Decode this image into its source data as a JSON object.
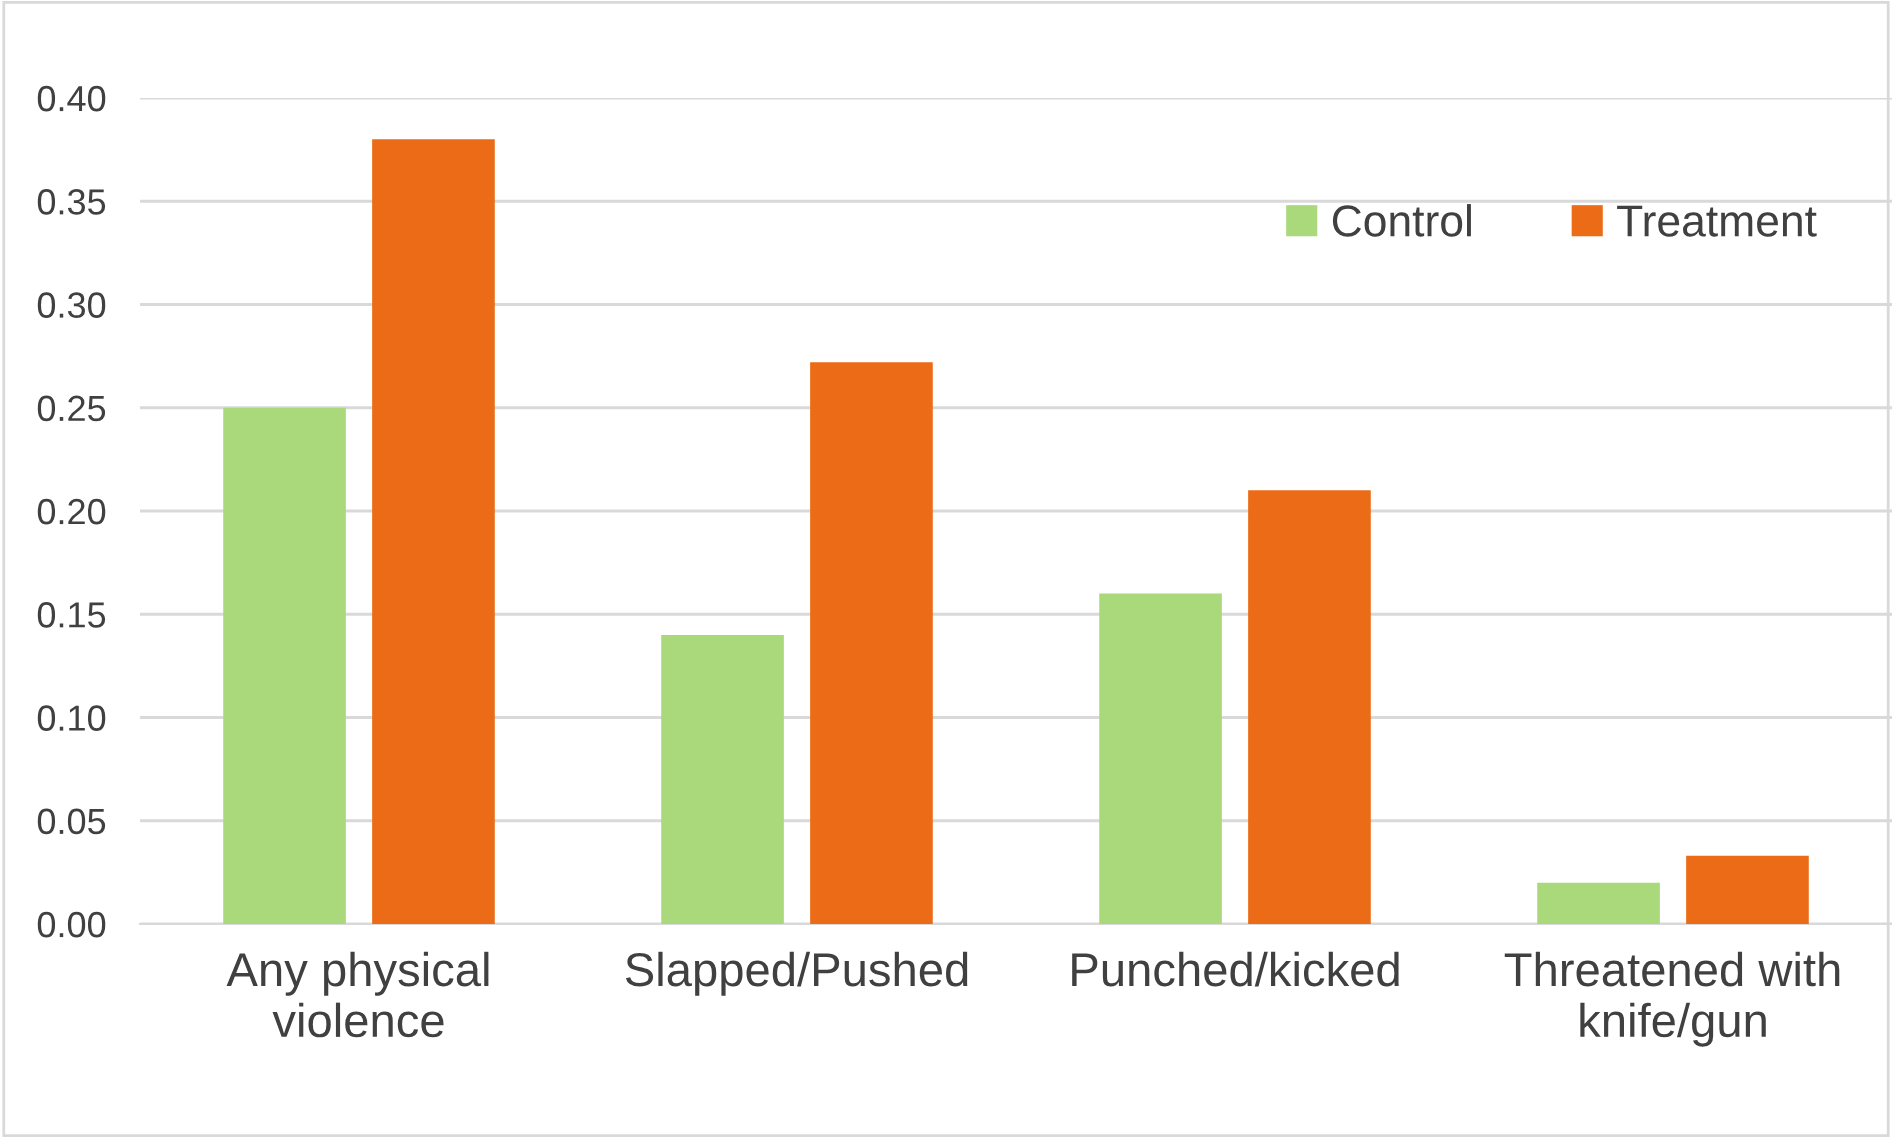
{
  "chart_data": {
    "type": "bar",
    "categories": [
      "Any physical\nviolence",
      "Slapped/Pushed",
      "Punched/kicked",
      "Threatened with\nknife/gun"
    ],
    "series": [
      {
        "name": "Control",
        "color": "#a9d97b",
        "values": [
          0.25,
          0.14,
          0.16,
          0.02
        ]
      },
      {
        "name": "Treatment",
        "color": "#eb6b17",
        "values": [
          0.38,
          0.272,
          0.21,
          0.033
        ]
      }
    ],
    "ylim": [
      0,
      0.4
    ],
    "yticks": [
      {
        "value": 0,
        "label": "0.00"
      },
      {
        "value": 0.05,
        "label": "0.05"
      },
      {
        "value": 0.1,
        "label": "0.10"
      },
      {
        "value": 0.15,
        "label": "0.15"
      },
      {
        "value": 0.2,
        "label": "0.20"
      },
      {
        "value": 0.25,
        "label": "0.25"
      },
      {
        "value": 0.3,
        "label": "0.30"
      },
      {
        "value": 0.35,
        "label": "0.35"
      },
      {
        "value": 0.4,
        "label": "0.40"
      }
    ],
    "grid": "y",
    "legend": "top right"
  }
}
